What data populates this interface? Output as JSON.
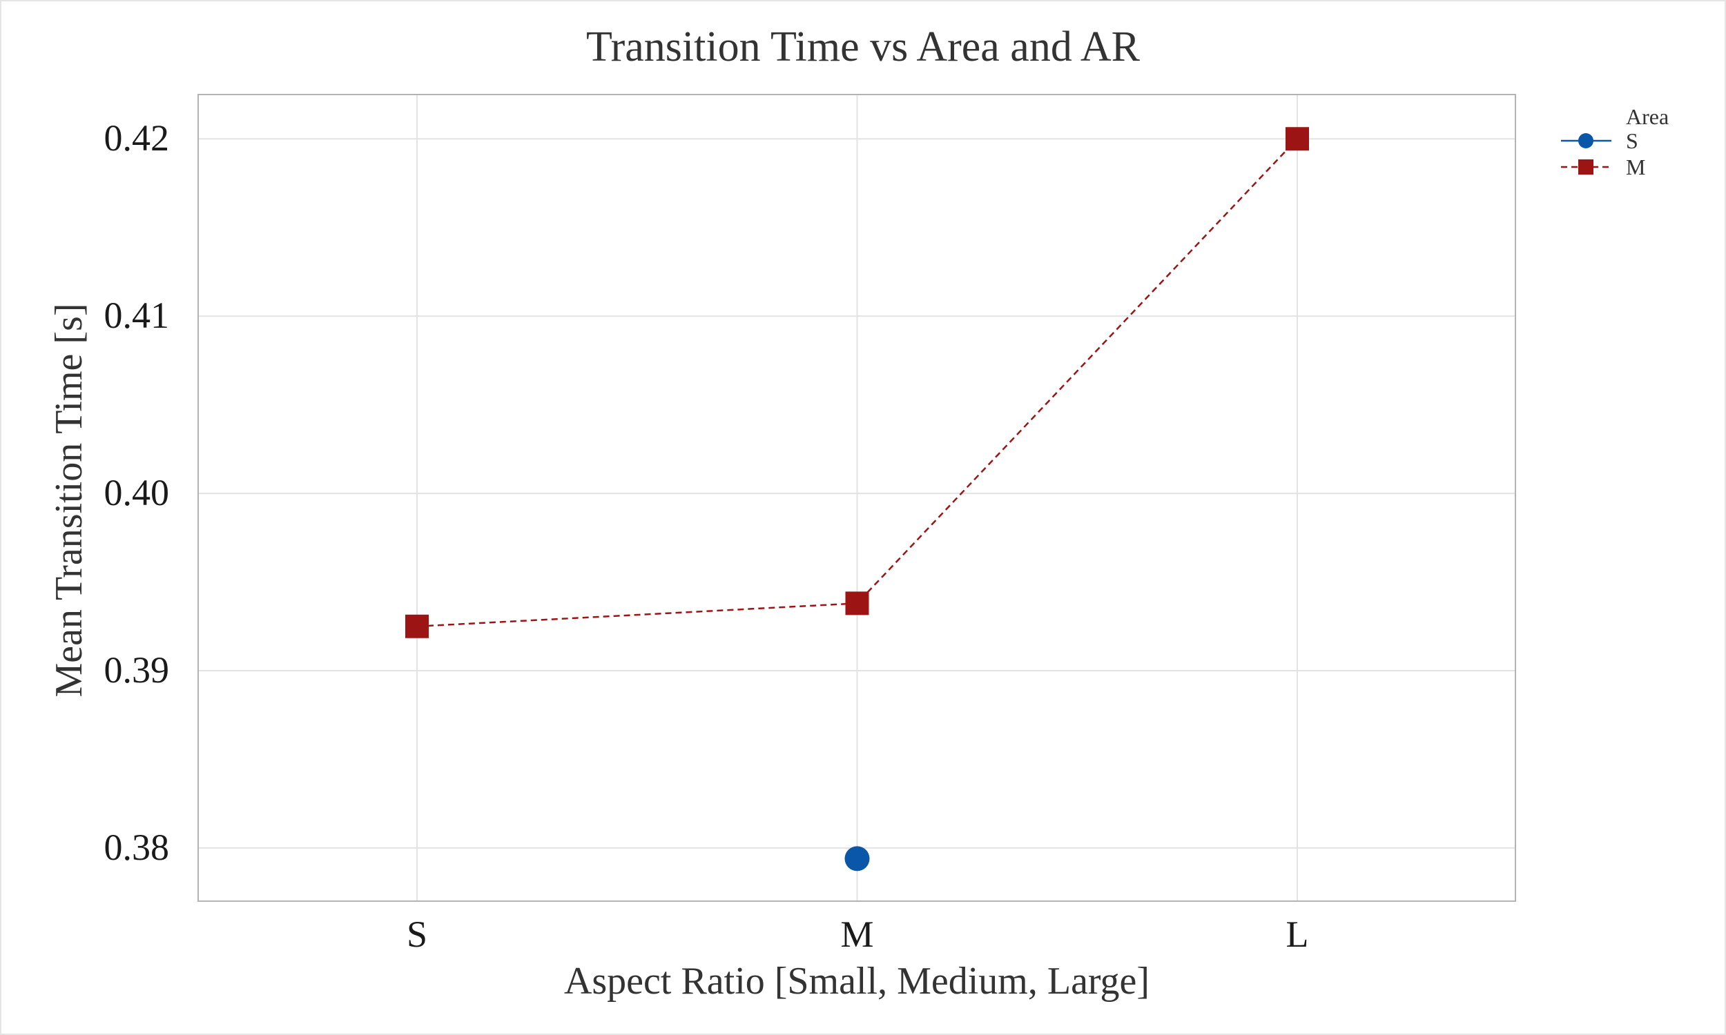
{
  "chart_data": {
    "type": "line",
    "title": "Transition Time vs Area and AR",
    "xlabel": "Aspect Ratio [Small, Medium, Large]",
    "ylabel": "Mean Transition Time [s]",
    "categories": [
      "S",
      "M",
      "L"
    ],
    "yticks": [
      "0.38",
      "0.39",
      "0.40",
      "0.41",
      "0.42"
    ],
    "ylim": [
      0.377,
      0.4225
    ],
    "grid": true,
    "legend": {
      "title": "Area",
      "placement": "top-right"
    },
    "series": [
      {
        "name": "S",
        "values": [
          null,
          0.3794,
          null
        ],
        "color": "#0a56a8",
        "marker": "circle",
        "line": "solid"
      },
      {
        "name": "M",
        "values": [
          0.3925,
          0.3938,
          0.42
        ],
        "color": "#9c1414",
        "marker": "square",
        "line": "dashed"
      }
    ]
  }
}
